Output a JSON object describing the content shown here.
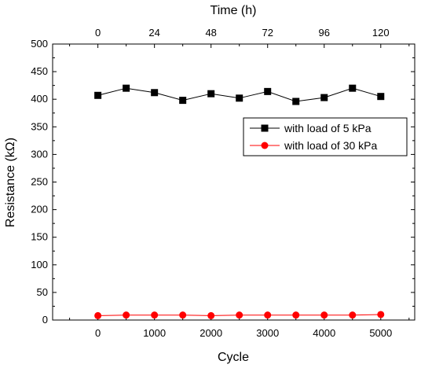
{
  "chart_data": {
    "type": "line",
    "xlabel": "Cycle",
    "ylabel": "Resistance (kΩ)",
    "top_xlabel": "Time (h)",
    "xlim": [
      -800,
      5600
    ],
    "ylim": [
      0,
      500
    ],
    "x_ticks": [
      0,
      1000,
      2000,
      3000,
      4000,
      5000
    ],
    "x_tick_labels": [
      "0",
      "1000",
      "2000",
      "3000",
      "4000",
      "5000"
    ],
    "y_ticks": [
      0,
      50,
      100,
      150,
      200,
      250,
      300,
      350,
      400,
      450,
      500
    ],
    "y_tick_labels": [
      "0",
      "50",
      "100",
      "150",
      "200",
      "250",
      "300",
      "350",
      "400",
      "450",
      "500"
    ],
    "top_ticks_cycle": [
      0,
      1000,
      2000,
      3000,
      4000,
      5000
    ],
    "top_tick_labels": [
      "0",
      "24",
      "48",
      "72",
      "96",
      "120"
    ],
    "grid": false,
    "legend_position": "right",
    "series": [
      {
        "name": "with load of 5 kPa",
        "color": "#000000",
        "marker": "square",
        "x": [
          0,
          500,
          1000,
          1500,
          2000,
          2500,
          3000,
          3500,
          4000,
          4500,
          5000
        ],
        "y": [
          407,
          420,
          412,
          398,
          410,
          402,
          414,
          396,
          403,
          420,
          405
        ]
      },
      {
        "name": "with load of 30 kPa",
        "color": "#ff0000",
        "marker": "circle",
        "x": [
          0,
          500,
          1000,
          1500,
          2000,
          2500,
          3000,
          3500,
          4000,
          4500,
          5000
        ],
        "y": [
          8,
          9,
          9,
          9,
          8,
          9,
          9,
          9,
          9,
          9,
          10
        ]
      }
    ]
  }
}
